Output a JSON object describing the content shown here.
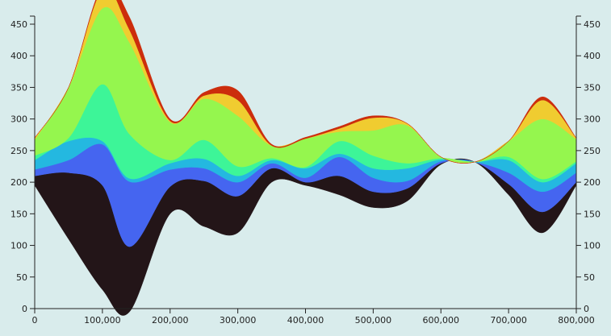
{
  "chart_data": {
    "type": "area",
    "subtype": "streamgraph",
    "title": "",
    "xlabel": "",
    "ylabel": "",
    "xlim": [
      0,
      800000
    ],
    "ylim": [
      0,
      480
    ],
    "grid": false,
    "legend": "none",
    "x_ticks": [
      0,
      100000,
      200000,
      300000,
      400000,
      500000,
      600000,
      700000,
      800000
    ],
    "x_tick_labels": [
      "0",
      "100,000",
      "200,000",
      "300,000",
      "400,000",
      "500,000",
      "600,000",
      "700,000",
      "800,000"
    ],
    "y_ticks": [
      0,
      50,
      100,
      150,
      200,
      250,
      300,
      350,
      400,
      450
    ],
    "y_tick_labels": [
      "0",
      "50",
      "100",
      "150",
      "200",
      "250",
      "300",
      "350",
      "400",
      "450"
    ],
    "x": [
      0,
      50000,
      100000,
      140000,
      200000,
      250000,
      300000,
      350000,
      400000,
      450000,
      500000,
      550000,
      600000,
      650000,
      700000,
      750000,
      800000
    ],
    "baseline": [
      195,
      110,
      30,
      -5,
      150,
      130,
      120,
      200,
      195,
      180,
      160,
      170,
      228,
      232,
      180,
      120,
      195
    ],
    "series": [
      {
        "color": "#231518",
        "values": [
          15,
          105,
          165,
          103,
          43,
          72,
          58,
          22,
          5,
          30,
          25,
          20,
          2,
          0,
          17,
          33,
          5
        ]
      },
      {
        "color": "#4565f0",
        "values": [
          10,
          20,
          65,
          103,
          27,
          20,
          22,
          8,
          7,
          30,
          22,
          12,
          3,
          0,
          18,
          32,
          15
        ]
      },
      {
        "color": "#24b8e0",
        "values": [
          15,
          30,
          5,
          5,
          10,
          15,
          10,
          5,
          15,
          5,
          15,
          20,
          3,
          0,
          20,
          15,
          15
        ]
      },
      {
        "color": "#3df598",
        "values": [
          7,
          5,
          90,
          70,
          5,
          30,
          15,
          3,
          2,
          20,
          20,
          8,
          2,
          0,
          5,
          5,
          3
        ]
      },
      {
        "color": "#95f64e",
        "values": [
          25,
          80,
          120,
          145,
          60,
          65,
          80,
          20,
          45,
          15,
          40,
          60,
          2,
          0,
          25,
          95,
          35
        ]
      },
      {
        "color": "#f0cc30",
        "values": [
          3,
          0,
          30,
          20,
          2,
          5,
          25,
          0,
          0,
          5,
          20,
          3,
          0,
          0,
          0,
          30,
          2
        ]
      },
      {
        "color": "#cc2d0c",
        "values": [
          0,
          0,
          5,
          20,
          3,
          5,
          15,
          2,
          2,
          3,
          3,
          0,
          0,
          0,
          0,
          5,
          0
        ]
      }
    ]
  }
}
